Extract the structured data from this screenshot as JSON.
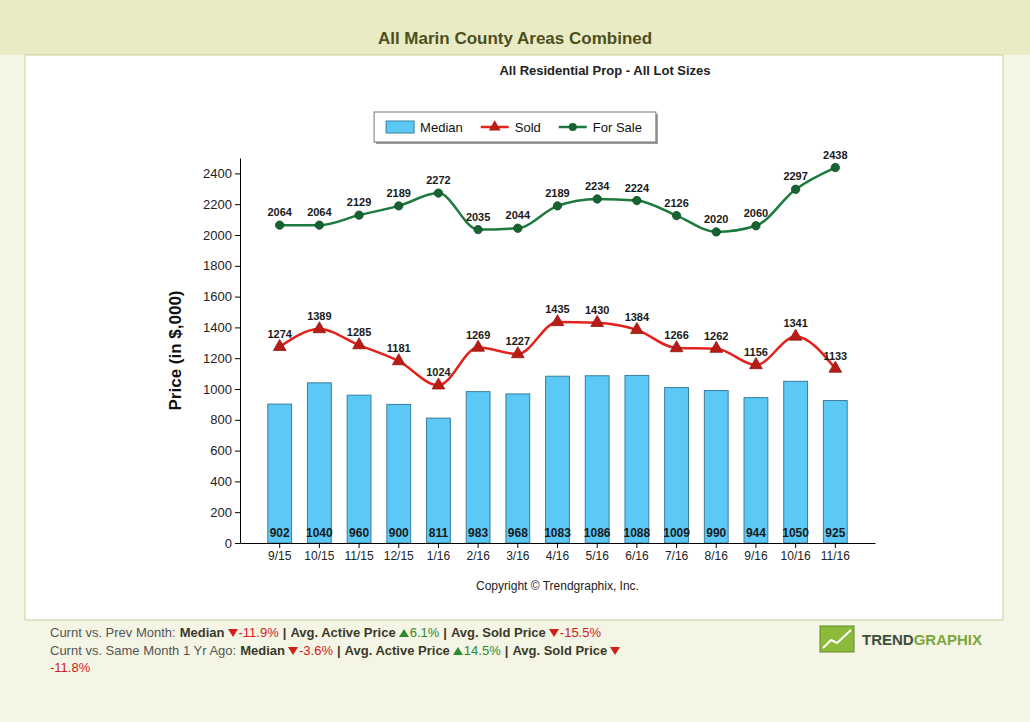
{
  "chart_data": {
    "type": "bar",
    "title": "All Marin County Areas Combined",
    "subtitle": "All Residential Prop - All Lot Sizes",
    "y_label": "Price (in $,000)",
    "annotations": [
      "Copyright © Trendgraphix, Inc."
    ],
    "categories": [
      "9/15",
      "10/15",
      "11/15",
      "12/15",
      "1/16",
      "2/16",
      "3/16",
      "4/16",
      "5/16",
      "6/16",
      "7/16",
      "8/16",
      "9/16",
      "10/16",
      "11/16"
    ],
    "series": [
      {
        "name": "Median",
        "type": "bar",
        "color": "#5cc8f6",
        "values": [
          902,
          1040,
          960,
          900,
          811,
          983,
          968,
          1083,
          1086,
          1088,
          1009,
          990,
          944,
          1050,
          925
        ]
      },
      {
        "name": "Sold",
        "type": "line",
        "color": "#e3231b",
        "marker": "triangle",
        "line_style": "smooth",
        "values": [
          1274,
          1389,
          1285,
          1181,
          1024,
          1269,
          1227,
          1435,
          1430,
          1384,
          1266,
          1262,
          1156,
          1341,
          1133
        ]
      },
      {
        "name": "For Sale",
        "type": "line",
        "color": "#1b7a3c",
        "marker": "circle",
        "line_style": "smooth",
        "values": [
          2064,
          2064,
          2129,
          2189,
          2272,
          2035,
          2044,
          2189,
          2234,
          2224,
          2126,
          2020,
          2060,
          2297,
          2438
        ]
      }
    ],
    "ylim": [
      0,
      2500
    ],
    "yticks": [
      0,
      200,
      400,
      600,
      800,
      1000,
      1200,
      1400,
      1600,
      1800,
      2000,
      2200,
      2400
    ],
    "grid": false,
    "legend": "top",
    "data_labels": true
  },
  "footer": {
    "separator": "|",
    "comparisons": [
      {
        "label": "Curnt vs. Prev Month:",
        "items": [
          {
            "name": "Median",
            "direction": "down",
            "change": "-11.9%"
          },
          {
            "name": "Avg. Active Price",
            "direction": "up",
            "change": "6.1%"
          },
          {
            "name": "Avg. Sold Price",
            "direction": "down",
            "change": "-15.5%"
          }
        ]
      },
      {
        "label": "Curnt vs. Same Month 1 Yr Ago:",
        "items": [
          {
            "name": "Median",
            "direction": "down",
            "change": "-3.6%"
          },
          {
            "name": "Avg. Active Price",
            "direction": "up",
            "change": "14.5%"
          },
          {
            "name": "Avg. Sold Price",
            "direction": "down",
            "change": "-11.8%"
          }
        ]
      }
    ]
  },
  "logo": [
    "TREND",
    "GRAPHIX"
  ]
}
